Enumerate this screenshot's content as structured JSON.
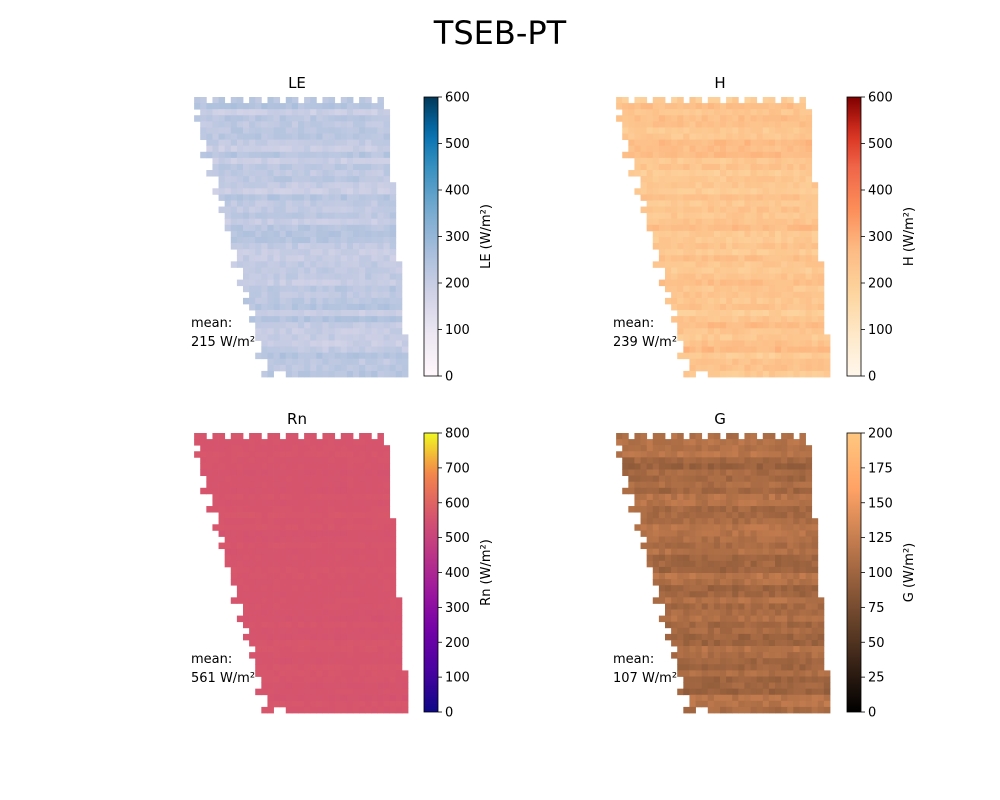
{
  "figure": {
    "title": "TSEB-PT"
  },
  "chart_data": [
    {
      "type": "heatmap",
      "title": "LE",
      "colormap": "PuBu",
      "colorbar_label": "LE (W/m²)",
      "range": [
        0,
        600
      ],
      "ticks": [
        0,
        100,
        200,
        300,
        400,
        500,
        600
      ],
      "mean_label": "mean:",
      "mean_value": 215,
      "mean_text": "215 W/m²",
      "cell_value": 215,
      "cell_spread": 60
    },
    {
      "type": "heatmap",
      "title": "H",
      "colormap": "OrRd",
      "colorbar_label": "H (W/m²)",
      "range": [
        0,
        600
      ],
      "ticks": [
        0,
        100,
        200,
        300,
        400,
        500,
        600
      ],
      "mean_label": "mean:",
      "mean_value": 239,
      "mean_text": "239 W/m²",
      "cell_value": 239,
      "cell_spread": 70
    },
    {
      "type": "heatmap",
      "title": "Rn",
      "colormap": "plasma",
      "colorbar_label": "Rn (W/m²)",
      "range": [
        0,
        800
      ],
      "ticks": [
        0,
        100,
        200,
        300,
        400,
        500,
        600,
        700,
        800
      ],
      "mean_label": "mean:",
      "mean_value": 561,
      "mean_text": "561 W/m²",
      "cell_value": 561,
      "cell_spread": 12
    },
    {
      "type": "heatmap",
      "title": "G",
      "colormap": "copper",
      "colorbar_label": "G (W/m²)",
      "range": [
        0,
        200
      ],
      "ticks": [
        0,
        25,
        50,
        75,
        100,
        125,
        150,
        175,
        200
      ],
      "mean_label": "mean:",
      "mean_value": 107,
      "mean_text": "107 W/m²",
      "cell_value": 107,
      "cell_spread": 22
    }
  ]
}
